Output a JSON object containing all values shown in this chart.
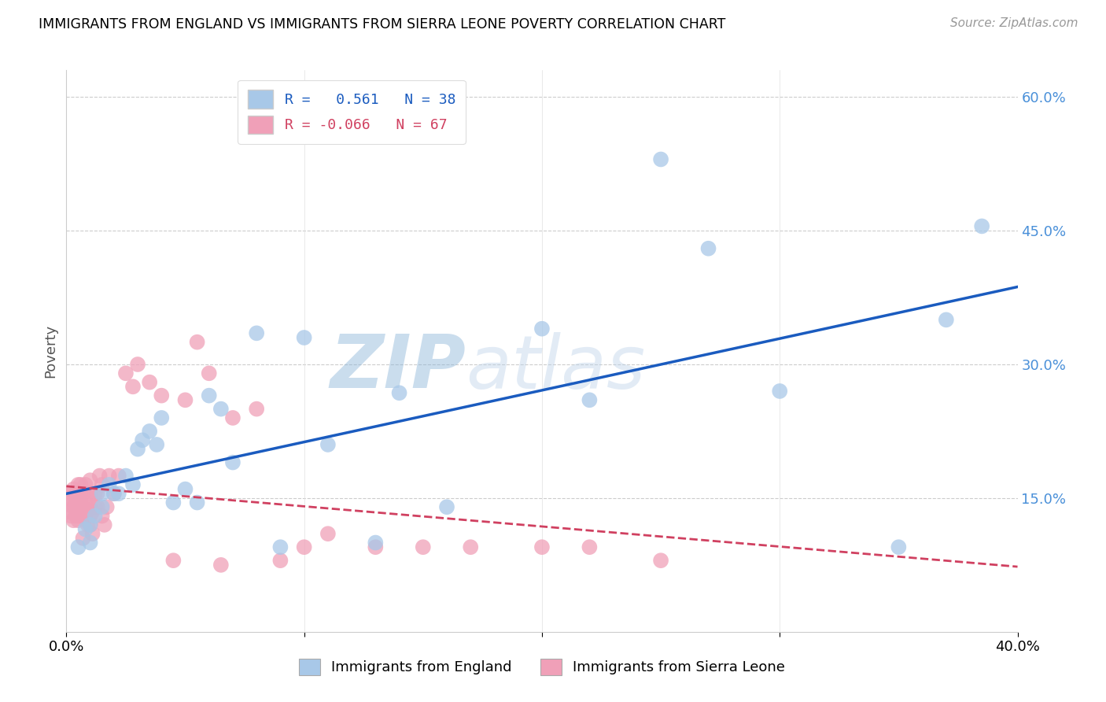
{
  "title": "IMMIGRANTS FROM ENGLAND VS IMMIGRANTS FROM SIERRA LEONE POVERTY CORRELATION CHART",
  "source": "Source: ZipAtlas.com",
  "ylabel": "Poverty",
  "y_ticks": [
    0.0,
    0.15,
    0.3,
    0.45,
    0.6
  ],
  "y_tick_labels": [
    "",
    "15.0%",
    "30.0%",
    "45.0%",
    "60.0%"
  ],
  "x_lim": [
    0.0,
    0.4
  ],
  "y_lim": [
    0.0,
    0.63
  ],
  "england_R": 0.561,
  "england_N": 38,
  "sierraleone_R": -0.066,
  "sierraleone_N": 67,
  "england_color": "#a8c8e8",
  "sierraleone_color": "#f0a0b8",
  "england_line_color": "#1a5bbf",
  "sierraleone_line_color": "#d04060",
  "watermark_zip": "ZIP",
  "watermark_atlas": "atlas",
  "england_x": [
    0.005,
    0.008,
    0.01,
    0.01,
    0.012,
    0.015,
    0.015,
    0.018,
    0.02,
    0.022,
    0.025,
    0.028,
    0.03,
    0.032,
    0.035,
    0.038,
    0.04,
    0.045,
    0.05,
    0.055,
    0.06,
    0.065,
    0.07,
    0.08,
    0.09,
    0.1,
    0.11,
    0.13,
    0.14,
    0.16,
    0.2,
    0.22,
    0.25,
    0.27,
    0.3,
    0.35,
    0.37,
    0.385
  ],
  "england_y": [
    0.095,
    0.115,
    0.12,
    0.1,
    0.13,
    0.155,
    0.14,
    0.165,
    0.155,
    0.155,
    0.175,
    0.165,
    0.205,
    0.215,
    0.225,
    0.21,
    0.24,
    0.145,
    0.16,
    0.145,
    0.265,
    0.25,
    0.19,
    0.335,
    0.095,
    0.33,
    0.21,
    0.1,
    0.268,
    0.14,
    0.34,
    0.26,
    0.53,
    0.43,
    0.27,
    0.095,
    0.35,
    0.455
  ],
  "sierraleone_x": [
    0.001,
    0.001,
    0.002,
    0.002,
    0.002,
    0.003,
    0.003,
    0.003,
    0.004,
    0.004,
    0.004,
    0.005,
    0.005,
    0.005,
    0.005,
    0.006,
    0.006,
    0.006,
    0.006,
    0.007,
    0.007,
    0.007,
    0.008,
    0.008,
    0.008,
    0.009,
    0.009,
    0.01,
    0.01,
    0.01,
    0.01,
    0.01,
    0.011,
    0.011,
    0.012,
    0.012,
    0.013,
    0.013,
    0.014,
    0.015,
    0.015,
    0.016,
    0.017,
    0.018,
    0.02,
    0.022,
    0.025,
    0.028,
    0.03,
    0.035,
    0.04,
    0.045,
    0.05,
    0.055,
    0.06,
    0.065,
    0.07,
    0.08,
    0.09,
    0.1,
    0.11,
    0.13,
    0.15,
    0.17,
    0.2,
    0.22,
    0.25
  ],
  "sierraleone_y": [
    0.135,
    0.15,
    0.13,
    0.145,
    0.155,
    0.125,
    0.14,
    0.16,
    0.13,
    0.145,
    0.155,
    0.125,
    0.14,
    0.155,
    0.165,
    0.13,
    0.145,
    0.155,
    0.165,
    0.105,
    0.14,
    0.155,
    0.13,
    0.145,
    0.165,
    0.12,
    0.135,
    0.12,
    0.13,
    0.14,
    0.155,
    0.17,
    0.11,
    0.135,
    0.14,
    0.155,
    0.14,
    0.155,
    0.175,
    0.13,
    0.165,
    0.12,
    0.14,
    0.175,
    0.155,
    0.175,
    0.29,
    0.275,
    0.3,
    0.28,
    0.265,
    0.08,
    0.26,
    0.325,
    0.29,
    0.075,
    0.24,
    0.25,
    0.08,
    0.095,
    0.11,
    0.095,
    0.095,
    0.095,
    0.095,
    0.095,
    0.08
  ]
}
